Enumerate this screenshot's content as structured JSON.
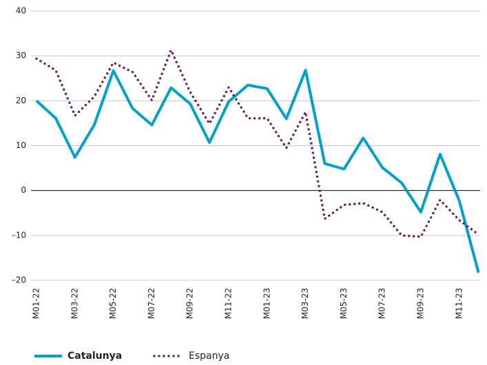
{
  "chart_data": {
    "type": "line",
    "categories": [
      "M01-22",
      null,
      "M03-22",
      null,
      "M05-22",
      null,
      "M07-22",
      null,
      "M09-22",
      null,
      "M11-22",
      null,
      "M01-23",
      null,
      "M03-23",
      null,
      "M05-23",
      null,
      "M07-23",
      null,
      "M09-23",
      null,
      "M11-23",
      null
    ],
    "series": [
      {
        "name": "Catalunya",
        "color": "#00a0c8",
        "style": "solid",
        "values": [
          20.0,
          16.1,
          7.4,
          14.6,
          26.7,
          18.3,
          14.6,
          22.9,
          19.3,
          10.7,
          19.8,
          23.5,
          22.7,
          16.0,
          26.8,
          6.0,
          4.8,
          11.7,
          5.1,
          1.7,
          -4.8,
          8.1,
          -2.3,
          -18.3
        ]
      },
      {
        "name": "Espanya",
        "color": "#6e1e5a",
        "style": "dotted",
        "values": [
          29.4,
          26.8,
          16.7,
          20.9,
          28.5,
          26.4,
          20.1,
          31.3,
          21.9,
          14.9,
          23.0,
          16.1,
          16.1,
          9.5,
          17.5,
          -6.3,
          -3.2,
          -2.8,
          -4.8,
          -10.0,
          -10.3,
          -2.1,
          -6.6,
          -9.8
        ]
      }
    ],
    "ylim": [
      -20,
      40
    ],
    "yticks": [
      {
        "value": -20,
        "label": "–20"
      },
      {
        "value": -10,
        "label": "–10"
      },
      0,
      10,
      20,
      30,
      40
    ],
    "grid": true,
    "legend": "bottom"
  }
}
